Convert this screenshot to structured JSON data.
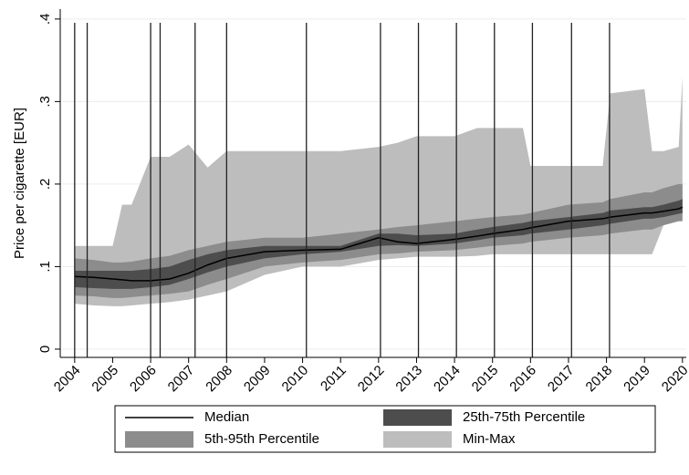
{
  "chart_data": {
    "type": "area",
    "ylabel": "Price per cigarette [EUR]",
    "x": [
      2004,
      2004.5,
      2005,
      2005.25,
      2005.5,
      2006,
      2006.5,
      2007,
      2007.5,
      2008,
      2009,
      2010,
      2011,
      2012,
      2012.5,
      2013,
      2014,
      2014.6,
      2015,
      2015.8,
      2016,
      2017,
      2017.9,
      2018.1,
      2019,
      2019.2,
      2019.5,
      2019.9,
      2020
    ],
    "series": [
      {
        "name": "Median",
        "color": "#000000",
        "values": [
          0.088,
          0.087,
          0.085,
          0.084,
          0.083,
          0.083,
          0.085,
          0.092,
          0.102,
          0.11,
          0.118,
          0.12,
          0.121,
          0.135,
          0.13,
          0.128,
          0.133,
          0.137,
          0.14,
          0.145,
          0.147,
          0.155,
          0.158,
          0.16,
          0.165,
          0.165,
          0.167,
          0.17,
          0.172
        ]
      },
      {
        "name": "25th-75th Percentile",
        "color": "#4d4d4d",
        "lower": [
          0.075,
          0.074,
          0.073,
          0.073,
          0.073,
          0.075,
          0.078,
          0.085,
          0.093,
          0.1,
          0.11,
          0.115,
          0.118,
          0.125,
          0.126,
          0.125,
          0.128,
          0.132,
          0.135,
          0.138,
          0.14,
          0.145,
          0.15,
          0.152,
          0.158,
          0.158,
          0.16,
          0.164,
          0.165
        ],
        "upper": [
          0.095,
          0.095,
          0.095,
          0.095,
          0.095,
          0.097,
          0.1,
          0.108,
          0.115,
          0.12,
          0.125,
          0.125,
          0.125,
          0.14,
          0.14,
          0.138,
          0.14,
          0.145,
          0.148,
          0.153,
          0.155,
          0.16,
          0.165,
          0.168,
          0.172,
          0.172,
          0.175,
          0.18,
          0.182
        ]
      },
      {
        "name": "5th-95th Percentile",
        "color": "#8c8c8c",
        "lower": [
          0.065,
          0.064,
          0.062,
          0.062,
          0.063,
          0.065,
          0.067,
          0.07,
          0.078,
          0.085,
          0.1,
          0.105,
          0.108,
          0.115,
          0.116,
          0.118,
          0.12,
          0.123,
          0.125,
          0.128,
          0.13,
          0.135,
          0.138,
          0.14,
          0.145,
          0.145,
          0.15,
          0.155,
          0.155
        ],
        "upper": [
          0.11,
          0.108,
          0.105,
          0.105,
          0.106,
          0.11,
          0.113,
          0.12,
          0.125,
          0.13,
          0.135,
          0.135,
          0.14,
          0.145,
          0.148,
          0.15,
          0.155,
          0.158,
          0.16,
          0.163,
          0.165,
          0.175,
          0.178,
          0.182,
          0.19,
          0.19,
          0.195,
          0.2,
          0.2
        ]
      },
      {
        "name": "Min-Max",
        "color": "#bdbdbd",
        "lower": [
          0.055,
          0.053,
          0.052,
          0.052,
          0.053,
          0.055,
          0.057,
          0.06,
          0.065,
          0.07,
          0.09,
          0.1,
          0.1,
          0.108,
          0.11,
          0.112,
          0.112,
          0.113,
          0.115,
          0.115,
          0.115,
          0.115,
          0.115,
          0.115,
          0.115,
          0.115,
          0.15,
          0.158,
          0.16
        ],
        "upper": [
          0.125,
          0.125,
          0.125,
          0.175,
          0.175,
          0.233,
          0.233,
          0.248,
          0.22,
          0.24,
          0.24,
          0.24,
          0.24,
          0.245,
          0.25,
          0.258,
          0.258,
          0.268,
          0.268,
          0.268,
          0.222,
          0.222,
          0.222,
          0.31,
          0.315,
          0.24,
          0.24,
          0.245,
          0.33
        ]
      }
    ],
    "vlines": [
      2004,
      2004.33,
      2006,
      2006.25,
      2007.17,
      2008,
      2010.1,
      2012.05,
      2013.05,
      2014.05,
      2015.05,
      2016.05,
      2017.08,
      2018.08
    ],
    "xlim": [
      2003.62,
      2020.1
    ],
    "xticks": [
      2004,
      2005,
      2006,
      2007,
      2008,
      2009,
      2010,
      2011,
      2012,
      2013,
      2014,
      2015,
      2016,
      2017,
      2018,
      2019,
      2020
    ],
    "ylim": [
      -0.01,
      0.412
    ],
    "yticks": [
      0,
      {
        "value": 0.1,
        "label": ".1"
      },
      {
        "value": 0.2,
        "label": ".2"
      },
      {
        "value": 0.3,
        "label": ".3"
      },
      {
        "value": 0.4,
        "label": ".4"
      }
    ],
    "grid": true
  }
}
